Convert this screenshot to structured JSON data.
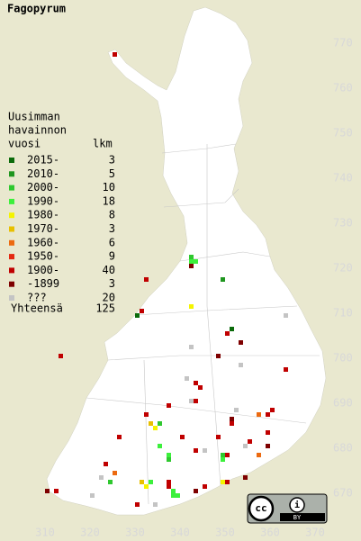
{
  "title": "Fagopyrum",
  "legend": {
    "header": [
      "Uusimman",
      "havainnon",
      "vuosi"
    ],
    "count_header": "lkm",
    "entries": [
      {
        "label": "2015-",
        "count": 3,
        "color": "#0b6b0b"
      },
      {
        "label": "2010-",
        "count": 5,
        "color": "#1f961f"
      },
      {
        "label": "2000-",
        "count": 10,
        "color": "#2fc82f"
      },
      {
        "label": "1990-",
        "count": 18,
        "color": "#3cf03c"
      },
      {
        "label": "1980-",
        "count": 8,
        "color": "#f4f400"
      },
      {
        "label": "1970-",
        "count": 3,
        "color": "#e8c000"
      },
      {
        "label": "1960-",
        "count": 6,
        "color": "#ec6a10"
      },
      {
        "label": "1950-",
        "count": 9,
        "color": "#e42810"
      },
      {
        "label": "1900-",
        "count": 40,
        "color": "#c00000"
      },
      {
        "label": "-1899",
        "count": 3,
        "color": "#7e0000"
      },
      {
        "label": "???",
        "count": 20,
        "color": "#c4c4c4"
      }
    ],
    "total_label": "Yhteensä",
    "total": 125
  },
  "xticks": [
    310,
    320,
    330,
    340,
    350,
    360,
    370
  ],
  "yticks": [
    670,
    680,
    690,
    700,
    710,
    720,
    730,
    740,
    750,
    760,
    770
  ],
  "squares": [
    {
      "x": 325,
      "y": 767,
      "class": 8
    },
    {
      "x": 342,
      "y": 722,
      "class": 2
    },
    {
      "x": 343,
      "y": 721,
      "class": 3
    },
    {
      "x": 342,
      "y": 721,
      "class": 3
    },
    {
      "x": 332,
      "y": 717,
      "class": 8
    },
    {
      "x": 349,
      "y": 717,
      "class": 1
    },
    {
      "x": 342,
      "y": 720,
      "class": 9
    },
    {
      "x": 330,
      "y": 709,
      "class": 0
    },
    {
      "x": 331,
      "y": 710,
      "class": 8
    },
    {
      "x": 342,
      "y": 711,
      "class": 4
    },
    {
      "x": 351,
      "y": 706,
      "class": 0
    },
    {
      "x": 350,
      "y": 705,
      "class": 8
    },
    {
      "x": 353,
      "y": 703,
      "class": 9
    },
    {
      "x": 313,
      "y": 700,
      "class": 8
    },
    {
      "x": 342,
      "y": 702,
      "class": 10
    },
    {
      "x": 363,
      "y": 709,
      "class": 10
    },
    {
      "x": 348,
      "y": 700,
      "class": 9
    },
    {
      "x": 353,
      "y": 698,
      "class": 10
    },
    {
      "x": 363,
      "y": 697,
      "class": 8
    },
    {
      "x": 341,
      "y": 695,
      "class": 10
    },
    {
      "x": 343,
      "y": 694,
      "class": 8
    },
    {
      "x": 344,
      "y": 693,
      "class": 8
    },
    {
      "x": 342,
      "y": 690,
      "class": 10
    },
    {
      "x": 337,
      "y": 689,
      "class": 8
    },
    {
      "x": 343,
      "y": 690,
      "class": 8
    },
    {
      "x": 352,
      "y": 688,
      "class": 10
    },
    {
      "x": 357,
      "y": 687,
      "class": 6
    },
    {
      "x": 359,
      "y": 687,
      "class": 8
    },
    {
      "x": 360,
      "y": 688,
      "class": 8
    },
    {
      "x": 332,
      "y": 687,
      "class": 8
    },
    {
      "x": 333,
      "y": 685,
      "class": 5
    },
    {
      "x": 334,
      "y": 684,
      "class": 4
    },
    {
      "x": 335,
      "y": 685,
      "class": 2
    },
    {
      "x": 351,
      "y": 686,
      "class": 9
    },
    {
      "x": 351,
      "y": 685,
      "class": 8
    },
    {
      "x": 359,
      "y": 683,
      "class": 8
    },
    {
      "x": 326,
      "y": 682,
      "class": 8
    },
    {
      "x": 340,
      "y": 682,
      "class": 8
    },
    {
      "x": 348,
      "y": 682,
      "class": 8
    },
    {
      "x": 355,
      "y": 681,
      "class": 8
    },
    {
      "x": 359,
      "y": 680,
      "class": 9
    },
    {
      "x": 335,
      "y": 680,
      "class": 3
    },
    {
      "x": 337,
      "y": 678,
      "class": 3
    },
    {
      "x": 337,
      "y": 677,
      "class": 2
    },
    {
      "x": 357,
      "y": 678,
      "class": 6
    },
    {
      "x": 343,
      "y": 679,
      "class": 8
    },
    {
      "x": 345,
      "y": 679,
      "class": 10
    },
    {
      "x": 349,
      "y": 678,
      "class": 2
    },
    {
      "x": 349,
      "y": 677,
      "class": 3
    },
    {
      "x": 350,
      "y": 678,
      "class": 8
    },
    {
      "x": 354,
      "y": 680,
      "class": 10
    },
    {
      "x": 323,
      "y": 676,
      "class": 8
    },
    {
      "x": 322,
      "y": 673,
      "class": 3
    },
    {
      "x": 324,
      "y": 672,
      "class": 2
    },
    {
      "x": 325,
      "y": 674,
      "class": 6
    },
    {
      "x": 331,
      "y": 672,
      "class": 5
    },
    {
      "x": 332,
      "y": 671,
      "class": 4
    },
    {
      "x": 333,
      "y": 672,
      "class": 3
    },
    {
      "x": 337,
      "y": 672,
      "class": 8
    },
    {
      "x": 338,
      "y": 670,
      "class": 3
    },
    {
      "x": 339,
      "y": 669,
      "class": 3
    },
    {
      "x": 338,
      "y": 669,
      "class": 3
    },
    {
      "x": 343,
      "y": 670,
      "class": 9
    },
    {
      "x": 337,
      "y": 671,
      "class": 8
    },
    {
      "x": 345,
      "y": 671,
      "class": 8
    },
    {
      "x": 349,
      "y": 672,
      "class": 4
    },
    {
      "x": 350,
      "y": 672,
      "class": 8
    },
    {
      "x": 354,
      "y": 673,
      "class": 9
    },
    {
      "x": 312,
      "y": 670,
      "class": 8
    },
    {
      "x": 310,
      "y": 670,
      "class": 9
    },
    {
      "x": 330,
      "y": 667,
      "class": 8
    },
    {
      "x": 320,
      "y": 669,
      "class": 10
    },
    {
      "x": 334,
      "y": 667,
      "class": 10
    },
    {
      "x": 322,
      "y": 673,
      "class": 10
    }
  ],
  "license": {
    "cc": "cc",
    "by": "BY"
  }
}
